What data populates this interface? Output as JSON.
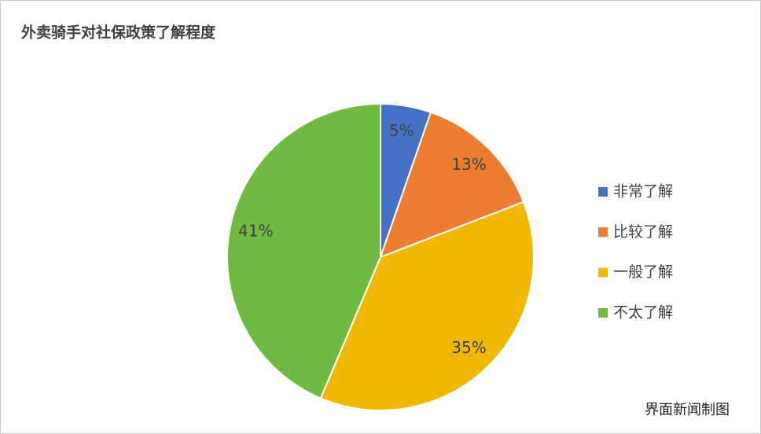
{
  "chart_data": {
    "type": "pie",
    "title": "外卖骑手对社保政策了解程度",
    "source": "界面新闻制图",
    "categories": [
      "非常了解",
      "比较了解",
      "一般了解",
      "不太了解"
    ],
    "values": [
      5,
      13,
      35,
      41
    ],
    "value_labels": [
      "5%",
      "13%",
      "35%",
      "41%"
    ],
    "colors": [
      "#4472c4",
      "#ed7d31",
      "#f0b800",
      "#70b943"
    ],
    "legend": "right"
  }
}
